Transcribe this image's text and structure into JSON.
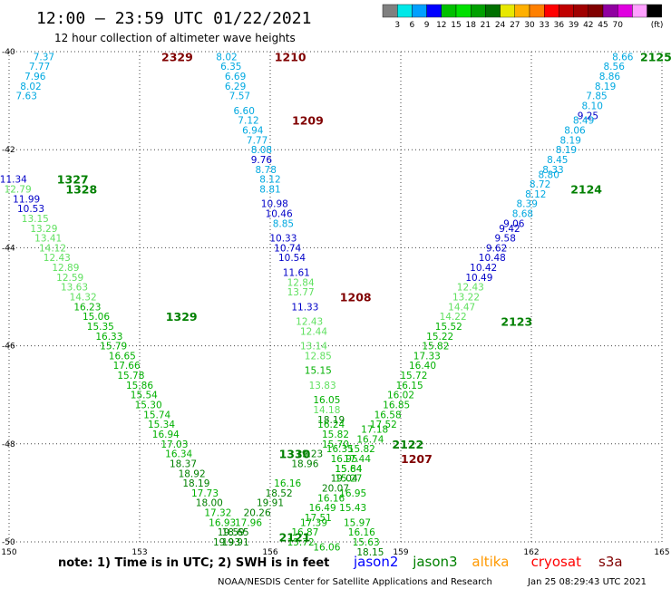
{
  "header": {
    "title": "12:00 – 23:59 UTC 01/22/2021",
    "subtitle": "12 hour collection of altimeter wave heights"
  },
  "legend": {
    "unit": "(ft)",
    "colors": [
      "#808080",
      "#00e8e8",
      "#00a0ff",
      "#0000ff",
      "#00c000",
      "#00e000",
      "#00a000",
      "#007000",
      "#e8e800",
      "#ffb000",
      "#ff8000",
      "#ff0000",
      "#c00000",
      "#a00000",
      "#800000",
      "#9000a0",
      "#e000e0",
      "#ffa0ff",
      "#000000"
    ],
    "labels": [
      "3",
      "6",
      "9",
      "12",
      "15",
      "18",
      "21",
      "24",
      "27",
      "30",
      "33",
      "36",
      "39",
      "42",
      "45",
      "70"
    ]
  },
  "footer": {
    "note": "note:  1) Time is in UTC;  2) SWH is in feet",
    "satellites": [
      {
        "name": "jason2",
        "color": "#0000ff"
      },
      {
        "name": "jason3",
        "color": "#008000"
      },
      {
        "name": "altika",
        "color": "#ff9900"
      },
      {
        "name": "cryosat",
        "color": "#ff0000"
      },
      {
        "name": "s3a",
        "color": "#800000"
      }
    ],
    "credit": "NOAA/NESDIS Center for Satellite Applications and Research",
    "timestamp": "Jan 25 08:29:43 UTC 2021"
  },
  "chart_data": {
    "type": "scatter",
    "title": "12:00 – 23:59 UTC 01/22/2021",
    "subtitle": "12 hour collection of altimeter wave heights",
    "xlim": [
      150,
      165
    ],
    "ylim": [
      -50,
      -40
    ],
    "xticks": [
      150,
      153,
      156,
      159,
      162,
      165
    ],
    "yticks": [
      -40,
      -42,
      -44,
      -46,
      -48,
      -50
    ],
    "xtick_labels": [
      "150",
      "153",
      "156",
      "159",
      "162",
      "165"
    ],
    "ytick_labels": [
      "40",
      "42",
      "44",
      "46",
      "48",
      "50"
    ],
    "grid": true,
    "unit": "ft",
    "pass_labels": [
      {
        "text": "2329",
        "x": 153.5,
        "y": -40.1,
        "color": "#800000"
      },
      {
        "text": "1210",
        "x": 156.1,
        "y": -40.1,
        "color": "#800000"
      },
      {
        "text": "1209",
        "x": 156.5,
        "y": -41.4,
        "color": "#800000"
      },
      {
        "text": "1208",
        "x": 157.6,
        "y": -45.0,
        "color": "#800000"
      },
      {
        "text": "1207",
        "x": 159.0,
        "y": -48.3,
        "color": "#800000"
      },
      {
        "text": "2125",
        "x": 164.5,
        "y": -40.1,
        "color": "#008000"
      },
      {
        "text": "2124",
        "x": 162.9,
        "y": -42.8,
        "color": "#008000"
      },
      {
        "text": "2123",
        "x": 161.3,
        "y": -45.5,
        "color": "#008000"
      },
      {
        "text": "2122",
        "x": 158.8,
        "y": -48.0,
        "color": "#008000"
      },
      {
        "text": "2121",
        "x": 156.2,
        "y": -49.9,
        "color": "#008000"
      },
      {
        "text": "1327",
        "x": 151.1,
        "y": -42.6,
        "color": "#008000"
      },
      {
        "text": "1328",
        "x": 151.3,
        "y": -42.8,
        "color": "#008000"
      },
      {
        "text": "1329",
        "x": 153.6,
        "y": -45.4,
        "color": "#008000"
      },
      {
        "text": "1330",
        "x": 156.2,
        "y": -48.2,
        "color": "#008000"
      }
    ],
    "series": [
      {
        "name": "2329",
        "points": [
          {
            "x": 150.8,
            "y": -40.1,
            "v": "7.37"
          },
          {
            "x": 150.7,
            "y": -40.3,
            "v": "7.77"
          },
          {
            "x": 150.6,
            "y": -40.5,
            "v": "7.96"
          },
          {
            "x": 150.5,
            "y": -40.7,
            "v": "8.02"
          },
          {
            "x": 150.4,
            "y": -40.9,
            "v": "7.63"
          }
        ]
      },
      {
        "name": "1210-1207",
        "points": [
          {
            "x": 155.0,
            "y": -40.1,
            "v": "8.02"
          },
          {
            "x": 155.1,
            "y": -40.3,
            "v": "6.35"
          },
          {
            "x": 155.2,
            "y": -40.5,
            "v": "6.69"
          },
          {
            "x": 155.2,
            "y": -40.7,
            "v": "6.29"
          },
          {
            "x": 155.3,
            "y": -40.9,
            "v": "7.57"
          },
          {
            "x": 155.4,
            "y": -41.2,
            "v": "6.60"
          },
          {
            "x": 155.5,
            "y": -41.4,
            "v": "7.12"
          },
          {
            "x": 155.6,
            "y": -41.6,
            "v": "6.94"
          },
          {
            "x": 155.7,
            "y": -41.8,
            "v": "7.77"
          },
          {
            "x": 155.8,
            "y": -42.0,
            "v": "8.08"
          },
          {
            "x": 155.8,
            "y": -42.2,
            "v": "9.76"
          },
          {
            "x": 155.9,
            "y": -42.4,
            "v": "8.78"
          },
          {
            "x": 156.0,
            "y": -42.6,
            "v": "8.12"
          },
          {
            "x": 156.0,
            "y": -42.8,
            "v": "8.81"
          },
          {
            "x": 156.1,
            "y": -43.1,
            "v": "10.98"
          },
          {
            "x": 156.2,
            "y": -43.3,
            "v": "10.46"
          },
          {
            "x": 156.3,
            "y": -43.5,
            "v": "8.85"
          },
          {
            "x": 156.3,
            "y": -43.8,
            "v": "10.33"
          },
          {
            "x": 156.4,
            "y": -44.0,
            "v": "10.74"
          },
          {
            "x": 156.5,
            "y": -44.2,
            "v": "10.54"
          },
          {
            "x": 156.6,
            "y": -44.5,
            "v": "11.61"
          },
          {
            "x": 156.7,
            "y": -44.7,
            "v": "12.84"
          },
          {
            "x": 156.7,
            "y": -44.9,
            "v": "13.77"
          },
          {
            "x": 156.8,
            "y": -45.2,
            "v": "11.33"
          },
          {
            "x": 156.9,
            "y": -45.5,
            "v": "12.43"
          },
          {
            "x": 157.0,
            "y": -45.7,
            "v": "12.44"
          },
          {
            "x": 157.0,
            "y": -46.0,
            "v": "13.14"
          },
          {
            "x": 157.1,
            "y": -46.2,
            "v": "12.85"
          },
          {
            "x": 157.1,
            "y": -46.5,
            "v": "15.15"
          },
          {
            "x": 157.2,
            "y": -46.8,
            "v": "13.83"
          },
          {
            "x": 157.3,
            "y": -47.1,
            "v": "16.05"
          },
          {
            "x": 157.3,
            "y": -47.3,
            "v": "14.18"
          },
          {
            "x": 157.4,
            "y": -47.5,
            "v": "18.19"
          },
          {
            "x": 157.4,
            "y": -47.6,
            "v": "16.24"
          },
          {
            "x": 157.5,
            "y": -47.8,
            "v": "15.82"
          },
          {
            "x": 157.5,
            "y": -48.0,
            "v": "15.70"
          },
          {
            "x": 157.6,
            "y": -48.1,
            "v": "16.35"
          },
          {
            "x": 157.7,
            "y": -48.3,
            "v": "16.95"
          },
          {
            "x": 157.8,
            "y": -48.5,
            "v": "15.64"
          }
        ]
      },
      {
        "name": "2125-2121",
        "points": [
          {
            "x": 164.1,
            "y": -40.1,
            "v": "8.66"
          },
          {
            "x": 163.9,
            "y": -40.3,
            "v": "8.56"
          },
          {
            "x": 163.8,
            "y": -40.5,
            "v": "8.86"
          },
          {
            "x": 163.7,
            "y": -40.7,
            "v": "8.19"
          },
          {
            "x": 163.5,
            "y": -40.9,
            "v": "7.85"
          },
          {
            "x": 163.4,
            "y": -41.1,
            "v": "8.10"
          },
          {
            "x": 163.3,
            "y": -41.3,
            "v": "9.25"
          },
          {
            "x": 163.2,
            "y": -41.4,
            "v": "8.49"
          },
          {
            "x": 163.0,
            "y": -41.6,
            "v": "8.06"
          },
          {
            "x": 162.9,
            "y": -41.8,
            "v": "8.19"
          },
          {
            "x": 162.8,
            "y": -42.0,
            "v": "8.19"
          },
          {
            "x": 162.6,
            "y": -42.2,
            "v": "8.45"
          },
          {
            "x": 162.5,
            "y": -42.4,
            "v": "8.33"
          },
          {
            "x": 162.4,
            "y": -42.5,
            "v": "8.80"
          },
          {
            "x": 162.2,
            "y": -42.7,
            "v": "8.72"
          },
          {
            "x": 162.1,
            "y": -42.9,
            "v": "8.12"
          },
          {
            "x": 161.9,
            "y": -43.1,
            "v": "8.39"
          },
          {
            "x": 161.8,
            "y": -43.3,
            "v": "8.68"
          },
          {
            "x": 161.6,
            "y": -43.5,
            "v": "9.06"
          },
          {
            "x": 161.5,
            "y": -43.6,
            "v": "9.42"
          },
          {
            "x": 161.4,
            "y": -43.8,
            "v": "9.58"
          },
          {
            "x": 161.2,
            "y": -44.0,
            "v": "9.62"
          },
          {
            "x": 161.1,
            "y": -44.2,
            "v": "10.48"
          },
          {
            "x": 160.9,
            "y": -44.4,
            "v": "10.42"
          },
          {
            "x": 160.8,
            "y": -44.6,
            "v": "10.49"
          },
          {
            "x": 160.6,
            "y": -44.8,
            "v": "12.43"
          },
          {
            "x": 160.5,
            "y": -45.0,
            "v": "13.22"
          },
          {
            "x": 160.4,
            "y": -45.2,
            "v": "14.47"
          },
          {
            "x": 160.2,
            "y": -45.4,
            "v": "14.22"
          },
          {
            "x": 160.1,
            "y": -45.6,
            "v": "15.52"
          },
          {
            "x": 159.9,
            "y": -45.8,
            "v": "15.22"
          },
          {
            "x": 159.8,
            "y": -46.0,
            "v": "15.82"
          },
          {
            "x": 159.6,
            "y": -46.2,
            "v": "17.33"
          },
          {
            "x": 159.5,
            "y": -46.4,
            "v": "16.40"
          },
          {
            "x": 159.3,
            "y": -46.6,
            "v": "15.72"
          },
          {
            "x": 159.2,
            "y": -46.8,
            "v": "16.15"
          },
          {
            "x": 159.0,
            "y": -47.0,
            "v": "16.02"
          },
          {
            "x": 158.9,
            "y": -47.2,
            "v": "16.85"
          },
          {
            "x": 158.7,
            "y": -47.4,
            "v": "16.58"
          },
          {
            "x": 158.6,
            "y": -47.6,
            "v": "17.52"
          },
          {
            "x": 158.4,
            "y": -47.7,
            "v": "17.18"
          },
          {
            "x": 158.3,
            "y": -47.9,
            "v": "16.74"
          },
          {
            "x": 158.1,
            "y": -48.1,
            "v": "15.82"
          },
          {
            "x": 158.0,
            "y": -48.3,
            "v": "17.44"
          },
          {
            "x": 157.8,
            "y": -48.5,
            "v": "15.84"
          },
          {
            "x": 157.7,
            "y": -48.7,
            "v": "19.04"
          },
          {
            "x": 157.5,
            "y": -48.9,
            "v": "20.07"
          },
          {
            "x": 157.4,
            "y": -49.1,
            "v": "16.16"
          },
          {
            "x": 157.2,
            "y": -49.3,
            "v": "16.49"
          },
          {
            "x": 157.1,
            "y": -49.5,
            "v": "17.51"
          },
          {
            "x": 157.0,
            "y": -49.6,
            "v": "17.39"
          },
          {
            "x": 156.8,
            "y": -49.8,
            "v": "16.87"
          },
          {
            "x": 156.7,
            "y": -50.0,
            "v": "15.72"
          }
        ]
      },
      {
        "name": "1327-1330",
        "points": [
          {
            "x": 150.1,
            "y": -42.6,
            "v": "11.34"
          },
          {
            "x": 150.2,
            "y": -42.8,
            "v": "12.79"
          },
          {
            "x": 150.4,
            "y": -43.0,
            "v": "11.99"
          },
          {
            "x": 150.5,
            "y": -43.2,
            "v": "10.53"
          },
          {
            "x": 150.6,
            "y": -43.4,
            "v": "13.15"
          },
          {
            "x": 150.8,
            "y": -43.6,
            "v": "13.29"
          },
          {
            "x": 150.9,
            "y": -43.8,
            "v": "13.41"
          },
          {
            "x": 151.0,
            "y": -44.0,
            "v": "14.12"
          },
          {
            "x": 151.1,
            "y": -44.2,
            "v": "12.43"
          },
          {
            "x": 151.3,
            "y": -44.4,
            "v": "12.89"
          },
          {
            "x": 151.4,
            "y": -44.6,
            "v": "12.59"
          },
          {
            "x": 151.5,
            "y": -44.8,
            "v": "13.63"
          },
          {
            "x": 151.7,
            "y": -45.0,
            "v": "14.32"
          },
          {
            "x": 151.8,
            "y": -45.2,
            "v": "16.23"
          },
          {
            "x": 152.0,
            "y": -45.4,
            "v": "15.06"
          },
          {
            "x": 152.1,
            "y": -45.6,
            "v": "15.35"
          },
          {
            "x": 152.3,
            "y": -45.8,
            "v": "16.33"
          },
          {
            "x": 152.4,
            "y": -46.0,
            "v": "15.79"
          },
          {
            "x": 152.6,
            "y": -46.2,
            "v": "16.65"
          },
          {
            "x": 152.7,
            "y": -46.4,
            "v": "17.66"
          },
          {
            "x": 152.8,
            "y": -46.6,
            "v": "15.78"
          },
          {
            "x": 153.0,
            "y": -46.8,
            "v": "15.86"
          },
          {
            "x": 153.1,
            "y": -47.0,
            "v": "15.54"
          },
          {
            "x": 153.2,
            "y": -47.2,
            "v": "15.30"
          },
          {
            "x": 153.4,
            "y": -47.4,
            "v": "15.74"
          },
          {
            "x": 153.5,
            "y": -47.6,
            "v": "15.34"
          },
          {
            "x": 153.6,
            "y": -47.8,
            "v": "16.94"
          },
          {
            "x": 153.8,
            "y": -48.0,
            "v": "17.03"
          },
          {
            "x": 153.9,
            "y": -48.2,
            "v": "16.34"
          },
          {
            "x": 154.0,
            "y": -48.4,
            "v": "18.37"
          },
          {
            "x": 154.2,
            "y": -48.6,
            "v": "18.92"
          },
          {
            "x": 154.3,
            "y": -48.8,
            "v": "18.19"
          },
          {
            "x": 154.5,
            "y": -49.0,
            "v": "17.73"
          },
          {
            "x": 154.6,
            "y": -49.2,
            "v": "18.00"
          },
          {
            "x": 154.8,
            "y": -49.4,
            "v": "17.32"
          },
          {
            "x": 154.9,
            "y": -49.6,
            "v": "16.93"
          },
          {
            "x": 155.1,
            "y": -49.8,
            "v": "19.59"
          },
          {
            "x": 155.2,
            "y": -50.0,
            "v": "19.91"
          }
        ]
      },
      {
        "name": "1330-2121 cross",
        "points": [
          {
            "x": 156.9,
            "y": -48.2,
            "v": "19.23"
          },
          {
            "x": 156.8,
            "y": -48.4,
            "v": "18.96"
          },
          {
            "x": 156.4,
            "y": -48.8,
            "v": "16.16"
          },
          {
            "x": 156.2,
            "y": -49.0,
            "v": "18.52"
          },
          {
            "x": 156.0,
            "y": -49.2,
            "v": "19.91"
          },
          {
            "x": 155.7,
            "y": -49.4,
            "v": "20.26"
          },
          {
            "x": 155.5,
            "y": -49.6,
            "v": "17.96"
          },
          {
            "x": 155.2,
            "y": -49.8,
            "v": "18.65"
          },
          {
            "x": 155.0,
            "y": -50.0,
            "v": "19.93"
          }
        ]
      },
      {
        "name": "1207 tail",
        "points": [
          {
            "x": 157.8,
            "y": -48.7,
            "v": "15.27"
          },
          {
            "x": 157.9,
            "y": -49.0,
            "v": "16.95"
          },
          {
            "x": 157.9,
            "y": -49.3,
            "v": "15.43"
          },
          {
            "x": 158.0,
            "y": -49.6,
            "v": "15.97"
          },
          {
            "x": 158.1,
            "y": -49.8,
            "v": "16.16"
          },
          {
            "x": 158.2,
            "y": -50.0,
            "v": "15.63"
          },
          {
            "x": 158.3,
            "y": -50.2,
            "v": "18.15"
          },
          {
            "x": 157.3,
            "y": -50.1,
            "v": "16.06"
          }
        ]
      }
    ]
  }
}
